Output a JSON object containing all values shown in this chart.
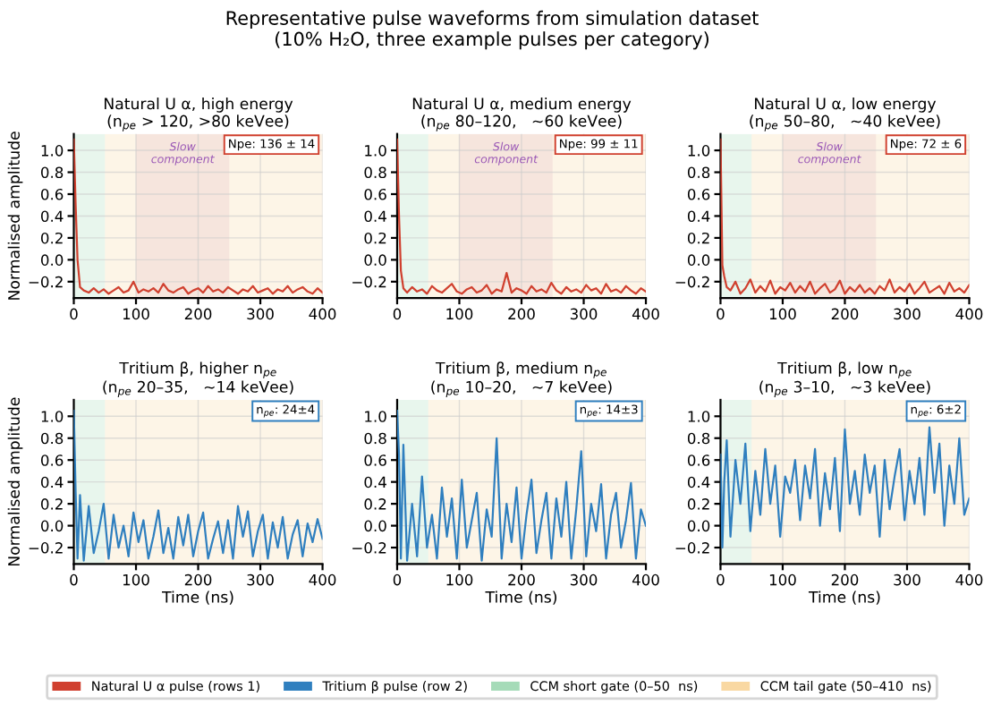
{
  "chart_data": [
    {
      "type": "line",
      "title": "Natural U α, high energy\n(n$_{pe}$ > 120, >80 keVee)",
      "ylabel": "Normalised amplitude",
      "legend": "bottom",
      "grid": true,
      "xlim": [
        0,
        400
      ],
      "ylim": [
        -0.35,
        1.15
      ],
      "xticks": [
        0,
        100,
        200,
        300,
        400
      ],
      "yticks": [
        {
          "value": -0.2,
          "label": "−0.2"
        },
        {
          "value": 0,
          "label": "0.0"
        },
        {
          "value": 0.2,
          "label": "0.2"
        },
        {
          "value": 0.4,
          "label": "0.4"
        },
        {
          "value": 0.6,
          "label": "0.6"
        },
        {
          "value": 0.8,
          "label": "0.8"
        },
        {
          "value": 1,
          "label": "1.0"
        }
      ],
      "bands": [
        {
          "axis": "x",
          "from": 0,
          "to": 50,
          "label": "CCM short gate (0–50  ns)",
          "color": "#7fcc9a"
        },
        {
          "axis": "x",
          "from": 50,
          "to": 410,
          "label": "CCM tail gate (50–410  ns)",
          "color": "#f6c77a"
        },
        {
          "axis": "x",
          "from": 100,
          "to": 250,
          "color": "#d9a0b4"
        }
      ],
      "annotations": [
        "Representative pulse waveforms from simulation dataset",
        "(10% H₂O, three example pulses per category)",
        "Slow\ncomponent",
        "Npe: 136 ± 14"
      ],
      "series": [
        {
          "name": "Natural U α pulse (rows 1)",
          "color": "#d0402f",
          "x": [
            0,
            3,
            6,
            10,
            16,
            24,
            32,
            40,
            48,
            56,
            64,
            72,
            80,
            88,
            96,
            104,
            112,
            120,
            128,
            136,
            144,
            152,
            160,
            168,
            176,
            184,
            192,
            200,
            208,
            216,
            224,
            232,
            240,
            248,
            256,
            264,
            272,
            280,
            288,
            296,
            304,
            312,
            320,
            328,
            336,
            344,
            352,
            360,
            368,
            376,
            384,
            392,
            400
          ],
          "values": [
            1.1,
            0.5,
            0.0,
            -0.25,
            -0.28,
            -0.3,
            -0.26,
            -0.3,
            -0.27,
            -0.31,
            -0.28,
            -0.25,
            -0.3,
            -0.28,
            -0.2,
            -0.3,
            -0.27,
            -0.29,
            -0.26,
            -0.3,
            -0.22,
            -0.28,
            -0.3,
            -0.27,
            -0.25,
            -0.31,
            -0.28,
            -0.26,
            -0.3,
            -0.24,
            -0.29,
            -0.27,
            -0.3,
            -0.25,
            -0.28,
            -0.31,
            -0.27,
            -0.29,
            -0.24,
            -0.3,
            -0.28,
            -0.26,
            -0.31,
            -0.27,
            -0.29,
            -0.24,
            -0.3,
            -0.27,
            -0.25,
            -0.29,
            -0.31,
            -0.26,
            -0.3
          ]
        }
      ]
    },
    {
      "type": "line",
      "title": "Natural U α, medium energy\n(n$_{pe}$ 80–120,   ~60 keVee)",
      "grid": true,
      "xlim": [
        0,
        400
      ],
      "ylim": [
        -0.35,
        1.15
      ],
      "xticks": [
        0,
        100,
        200,
        300,
        400
      ],
      "yticks": [
        {
          "value": -0.2,
          "label": "−0.2"
        },
        {
          "value": 0,
          "label": "0.0"
        },
        {
          "value": 0.2,
          "label": "0.2"
        },
        {
          "value": 0.4,
          "label": "0.4"
        },
        {
          "value": 0.6,
          "label": "0.6"
        },
        {
          "value": 0.8,
          "label": "0.8"
        },
        {
          "value": 1,
          "label": "1.0"
        }
      ],
      "bands": [
        {
          "axis": "x",
          "from": 0,
          "to": 50,
          "color": "#7fcc9a"
        },
        {
          "axis": "x",
          "from": 50,
          "to": 410,
          "color": "#f6c77a"
        },
        {
          "axis": "x",
          "from": 100,
          "to": 250,
          "color": "#d9a0b4"
        }
      ],
      "annotations": [
        "Slow\ncomponent",
        "Npe: 99 ± 11"
      ],
      "series": [
        {
          "color": "#d0402f",
          "x": [
            0,
            3,
            6,
            10,
            16,
            24,
            32,
            40,
            48,
            56,
            64,
            72,
            80,
            88,
            96,
            104,
            112,
            120,
            128,
            136,
            144,
            152,
            160,
            168,
            176,
            184,
            192,
            200,
            208,
            216,
            224,
            232,
            240,
            248,
            256,
            264,
            272,
            280,
            288,
            296,
            304,
            312,
            320,
            328,
            336,
            344,
            352,
            360,
            368,
            376,
            384,
            392,
            400
          ],
          "values": [
            1.1,
            0.4,
            -0.1,
            -0.26,
            -0.3,
            -0.25,
            -0.29,
            -0.27,
            -0.31,
            -0.24,
            -0.28,
            -0.3,
            -0.26,
            -0.22,
            -0.29,
            -0.31,
            -0.27,
            -0.25,
            -0.3,
            -0.28,
            -0.23,
            -0.31,
            -0.27,
            -0.29,
            -0.12,
            -0.3,
            -0.26,
            -0.28,
            -0.31,
            -0.24,
            -0.29,
            -0.27,
            -0.3,
            -0.21,
            -0.28,
            -0.31,
            -0.25,
            -0.29,
            -0.27,
            -0.3,
            -0.23,
            -0.28,
            -0.26,
            -0.31,
            -0.22,
            -0.29,
            -0.27,
            -0.3,
            -0.24,
            -0.28,
            -0.31,
            -0.26,
            -0.29
          ]
        }
      ]
    },
    {
      "type": "line",
      "title": "Natural U α, low energy\n(n$_{pe}$ 50–80,   ~40 keVee)",
      "grid": true,
      "xlim": [
        0,
        400
      ],
      "ylim": [
        -0.35,
        1.15
      ],
      "xticks": [
        0,
        100,
        200,
        300,
        400
      ],
      "yticks": [
        {
          "value": -0.2,
          "label": "−0.2"
        },
        {
          "value": 0,
          "label": "0.0"
        },
        {
          "value": 0.2,
          "label": "0.2"
        },
        {
          "value": 0.4,
          "label": "0.4"
        },
        {
          "value": 0.6,
          "label": "0.6"
        },
        {
          "value": 0.8,
          "label": "0.8"
        },
        {
          "value": 1,
          "label": "1.0"
        }
      ],
      "bands": [
        {
          "axis": "x",
          "from": 0,
          "to": 50,
          "color": "#7fcc9a"
        },
        {
          "axis": "x",
          "from": 50,
          "to": 410,
          "color": "#f6c77a"
        },
        {
          "axis": "x",
          "from": 100,
          "to": 250,
          "color": "#d9a0b4"
        }
      ],
      "annotations": [
        "Slow\ncomponent",
        "Npe: 72 ± 6"
      ],
      "series": [
        {
          "color": "#d0402f",
          "x": [
            0,
            3,
            6,
            10,
            16,
            24,
            32,
            40,
            48,
            56,
            64,
            72,
            80,
            88,
            96,
            104,
            112,
            120,
            128,
            136,
            144,
            152,
            160,
            168,
            176,
            184,
            192,
            200,
            208,
            216,
            224,
            232,
            240,
            248,
            256,
            264,
            272,
            280,
            288,
            296,
            304,
            312,
            320,
            328,
            336,
            344,
            352,
            360,
            368,
            376,
            384,
            392,
            400
          ],
          "values": [
            1.1,
            -0.05,
            -0.15,
            -0.25,
            -0.28,
            -0.2,
            -0.31,
            -0.26,
            -0.18,
            -0.3,
            -0.24,
            -0.29,
            -0.19,
            -0.31,
            -0.25,
            -0.28,
            -0.21,
            -0.3,
            -0.24,
            -0.29,
            -0.2,
            -0.31,
            -0.26,
            -0.22,
            -0.3,
            -0.27,
            -0.19,
            -0.31,
            -0.25,
            -0.29,
            -0.23,
            -0.3,
            -0.26,
            -0.31,
            -0.24,
            -0.28,
            -0.18,
            -0.3,
            -0.25,
            -0.29,
            -0.22,
            -0.31,
            -0.26,
            -0.2,
            -0.3,
            -0.27,
            -0.24,
            -0.31,
            -0.21,
            -0.29,
            -0.26,
            -0.3,
            -0.23
          ]
        }
      ]
    },
    {
      "type": "line",
      "title": "Tritium β, higher n$_{pe}$\n(n$_{pe}$ 20–35,   ~14 keVee)",
      "xlabel": "Time (ns)",
      "ylabel": "Normalised amplitude",
      "grid": true,
      "xlim": [
        0,
        400
      ],
      "ylim": [
        -0.35,
        1.15
      ],
      "xticks": [
        0,
        100,
        200,
        300,
        400
      ],
      "yticks": [
        {
          "value": -0.2,
          "label": "−0.2"
        },
        {
          "value": 0,
          "label": "0.0"
        },
        {
          "value": 0.2,
          "label": "0.2"
        },
        {
          "value": 0.4,
          "label": "0.4"
        },
        {
          "value": 0.6,
          "label": "0.6"
        },
        {
          "value": 0.8,
          "label": "0.8"
        },
        {
          "value": 1,
          "label": "1.0"
        }
      ],
      "bands": [
        {
          "axis": "x",
          "from": 0,
          "to": 50,
          "color": "#7fcc9a"
        },
        {
          "axis": "x",
          "from": 50,
          "to": 410,
          "color": "#f6c77a"
        }
      ],
      "annotations": [
        "n$_{pe}$: 24±4"
      ],
      "series": [
        {
          "name": "Tritium β pulse (row 2)",
          "color": "#2f7fbf",
          "x": [
            0,
            3,
            6,
            10,
            16,
            24,
            32,
            40,
            48,
            56,
            64,
            72,
            80,
            88,
            96,
            104,
            112,
            120,
            128,
            136,
            144,
            152,
            160,
            168,
            176,
            184,
            192,
            200,
            208,
            216,
            224,
            232,
            240,
            248,
            256,
            264,
            272,
            280,
            288,
            296,
            304,
            312,
            320,
            328,
            336,
            344,
            352,
            360,
            368,
            376,
            384,
            392,
            400
          ],
          "values": [
            1.05,
            0.3,
            -0.3,
            0.28,
            -0.32,
            0.18,
            -0.25,
            -0.05,
            0.2,
            -0.3,
            0.1,
            -0.2,
            0.0,
            -0.28,
            0.12,
            -0.15,
            0.05,
            -0.3,
            -0.1,
            0.14,
            -0.25,
            -0.02,
            -0.3,
            0.08,
            -0.18,
            0.1,
            -0.28,
            -0.05,
            0.12,
            -0.3,
            -0.12,
            0.04,
            -0.25,
            0.05,
            -0.3,
            0.18,
            -0.1,
            0.13,
            -0.28,
            -0.05,
            0.1,
            -0.3,
            0.03,
            -0.2,
            0.08,
            -0.3,
            -0.08,
            0.05,
            -0.28,
            0.02,
            -0.15,
            0.06,
            -0.12
          ]
        }
      ]
    },
    {
      "type": "line",
      "title": "Tritium β, medium n$_{pe}$\n(n$_{pe}$ 10–20,   ~7 keVee)",
      "xlabel": "Time (ns)",
      "grid": true,
      "xlim": [
        0,
        400
      ],
      "ylim": [
        -0.35,
        1.15
      ],
      "xticks": [
        0,
        100,
        200,
        300,
        400
      ],
      "yticks": [
        {
          "value": -0.2,
          "label": "−0.2"
        },
        {
          "value": 0,
          "label": "0.0"
        },
        {
          "value": 0.2,
          "label": "0.2"
        },
        {
          "value": 0.4,
          "label": "0.4"
        },
        {
          "value": 0.6,
          "label": "0.6"
        },
        {
          "value": 0.8,
          "label": "0.8"
        },
        {
          "value": 1,
          "label": "1.0"
        }
      ],
      "bands": [
        {
          "axis": "x",
          "from": 0,
          "to": 50,
          "color": "#7fcc9a"
        },
        {
          "axis": "x",
          "from": 50,
          "to": 410,
          "color": "#f6c77a"
        }
      ],
      "annotations": [
        "n$_{pe}$: 14±3"
      ],
      "series": [
        {
          "color": "#2f7fbf",
          "x": [
            0,
            3,
            6,
            10,
            16,
            24,
            32,
            40,
            48,
            56,
            64,
            72,
            80,
            88,
            96,
            104,
            112,
            120,
            128,
            136,
            144,
            152,
            160,
            168,
            176,
            184,
            192,
            200,
            208,
            216,
            224,
            232,
            240,
            248,
            256,
            264,
            272,
            280,
            288,
            296,
            304,
            312,
            320,
            328,
            336,
            344,
            352,
            360,
            368,
            376,
            384,
            392,
            400
          ],
          "values": [
            1.05,
            0.65,
            -0.3,
            0.74,
            -0.32,
            0.2,
            -0.28,
            0.45,
            -0.2,
            0.1,
            -0.3,
            0.35,
            -0.1,
            0.25,
            -0.3,
            0.42,
            -0.2,
            0.05,
            0.3,
            -0.32,
            0.15,
            -0.1,
            0.8,
            -0.3,
            0.2,
            -0.15,
            0.35,
            -0.3,
            0.1,
            0.42,
            -0.25,
            0.05,
            0.3,
            -0.3,
            0.25,
            -0.1,
            0.4,
            -0.3,
            0.15,
            0.68,
            -0.28,
            0.2,
            -0.05,
            0.38,
            -0.3,
            0.1,
            0.3,
            -0.2,
            0.05,
            0.39,
            -0.3,
            0.15,
            0.0
          ]
        }
      ]
    },
    {
      "type": "line",
      "title": "Tritium β, low n$_{pe}$\n(n$_{pe}$ 3–10,   ~3 keVee)",
      "xlabel": "Time (ns)",
      "grid": true,
      "xlim": [
        0,
        400
      ],
      "ylim": [
        -0.35,
        1.15
      ],
      "xticks": [
        0,
        100,
        200,
        300,
        400
      ],
      "yticks": [
        {
          "value": -0.2,
          "label": "−0.2"
        },
        {
          "value": 0,
          "label": "0.0"
        },
        {
          "value": 0.2,
          "label": "0.2"
        },
        {
          "value": 0.4,
          "label": "0.4"
        },
        {
          "value": 0.6,
          "label": "0.6"
        },
        {
          "value": 0.8,
          "label": "0.8"
        },
        {
          "value": 1,
          "label": "1.0"
        }
      ],
      "bands": [
        {
          "axis": "x",
          "from": 0,
          "to": 50,
          "color": "#7fcc9a"
        },
        {
          "axis": "x",
          "from": 50,
          "to": 410,
          "color": "#f6c77a"
        }
      ],
      "annotations": [
        "n$_{pe}$: 6±2"
      ],
      "series": [
        {
          "color": "#2f7fbf",
          "x": [
            0,
            3,
            6,
            10,
            16,
            24,
            32,
            40,
            48,
            56,
            64,
            72,
            80,
            88,
            96,
            104,
            112,
            120,
            128,
            136,
            144,
            152,
            160,
            168,
            176,
            184,
            192,
            200,
            208,
            216,
            224,
            232,
            240,
            248,
            256,
            264,
            272,
            280,
            288,
            296,
            304,
            312,
            320,
            328,
            336,
            344,
            352,
            360,
            368,
            376,
            384,
            392,
            400
          ],
          "values": [
            0.65,
            -0.2,
            0.4,
            0.78,
            -0.1,
            0.6,
            0.2,
            0.75,
            -0.05,
            0.5,
            0.1,
            0.7,
            0.2,
            0.55,
            -0.1,
            0.45,
            0.3,
            0.6,
            0.05,
            0.55,
            0.25,
            0.7,
            0.0,
            0.48,
            0.15,
            0.62,
            -0.05,
            0.88,
            0.2,
            0.5,
            0.1,
            0.65,
            0.3,
            0.55,
            -0.1,
            0.6,
            0.15,
            0.45,
            0.7,
            0.05,
            0.5,
            0.2,
            0.62,
            0.1,
            0.9,
            0.3,
            0.75,
            0.0,
            0.55,
            0.2,
            0.8,
            0.1,
            0.25
          ]
        }
      ]
    }
  ]
}
